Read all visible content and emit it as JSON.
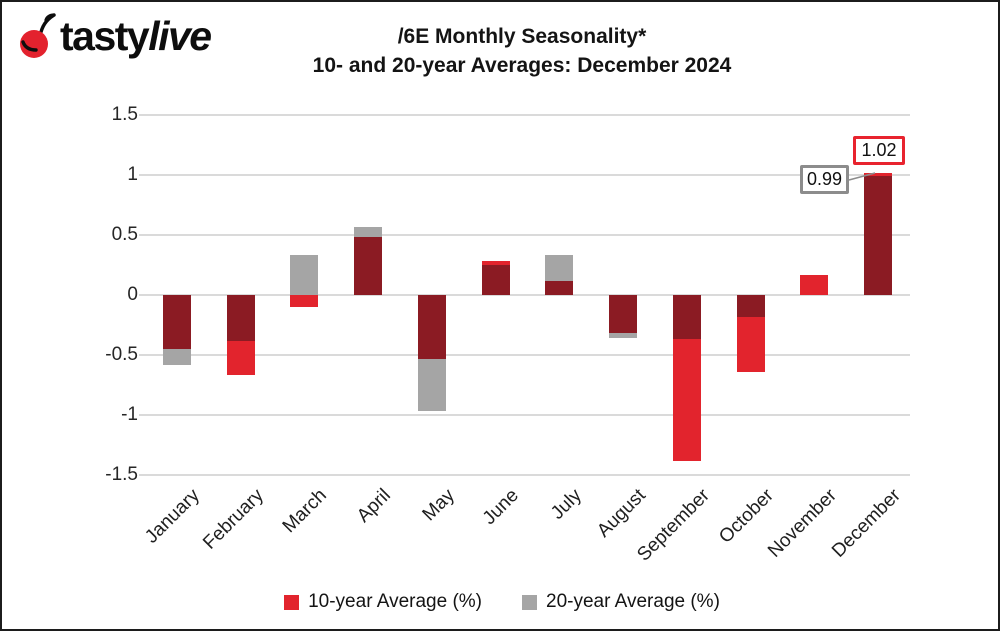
{
  "logo": {
    "brand_part1": "tasty",
    "brand_part2": "live",
    "cherry_color": "#e3222e"
  },
  "title": {
    "line1": "/6E Monthly Seasonality*",
    "line2": "10- and 20-year Averages: December 2024"
  },
  "chart_data": {
    "type": "bar",
    "categories": [
      "January",
      "February",
      "March",
      "April",
      "May",
      "June",
      "July",
      "August",
      "September",
      "October",
      "November",
      "December"
    ],
    "series": [
      {
        "name": "10-year Average (%)",
        "color": "#e2242d",
        "values": [
          -0.45,
          -0.67,
          -0.1,
          0.48,
          -0.53,
          0.28,
          0.12,
          -0.32,
          -1.38,
          -0.64,
          0.17,
          1.02
        ]
      },
      {
        "name": "20-year Average (%)",
        "color": "#a5a5a5",
        "values": [
          -0.58,
          -0.38,
          0.33,
          0.57,
          -0.97,
          0.25,
          0.33,
          -0.36,
          -0.37,
          -0.18,
          0.0,
          0.99
        ]
      }
    ],
    "overlap_color": "#8b1b23",
    "ylim": [
      -1.5,
      1.5
    ],
    "ytick_values": [
      1.5,
      1,
      0.5,
      0,
      -0.5,
      -1,
      -1.5
    ],
    "ytick_labels": [
      "1.5",
      "1",
      "0.5",
      "0",
      "-0.5",
      "-1",
      "-1.5"
    ],
    "grid": true,
    "gridline_color": "#dadada",
    "legend_position": "bottom",
    "annotations": [
      {
        "text": "0.99",
        "series": "20-year Average (%)",
        "border_color": "#8c8c8c",
        "month": "December"
      },
      {
        "text": "1.02",
        "series": "10-year Average (%)",
        "border_color": "#e8232e",
        "month": "December"
      }
    ]
  },
  "legend": {
    "items": [
      {
        "label": "10-year Average (%)",
        "color": "#e2242d"
      },
      {
        "label": "20-year Average (%)",
        "color": "#a5a5a5"
      }
    ]
  }
}
